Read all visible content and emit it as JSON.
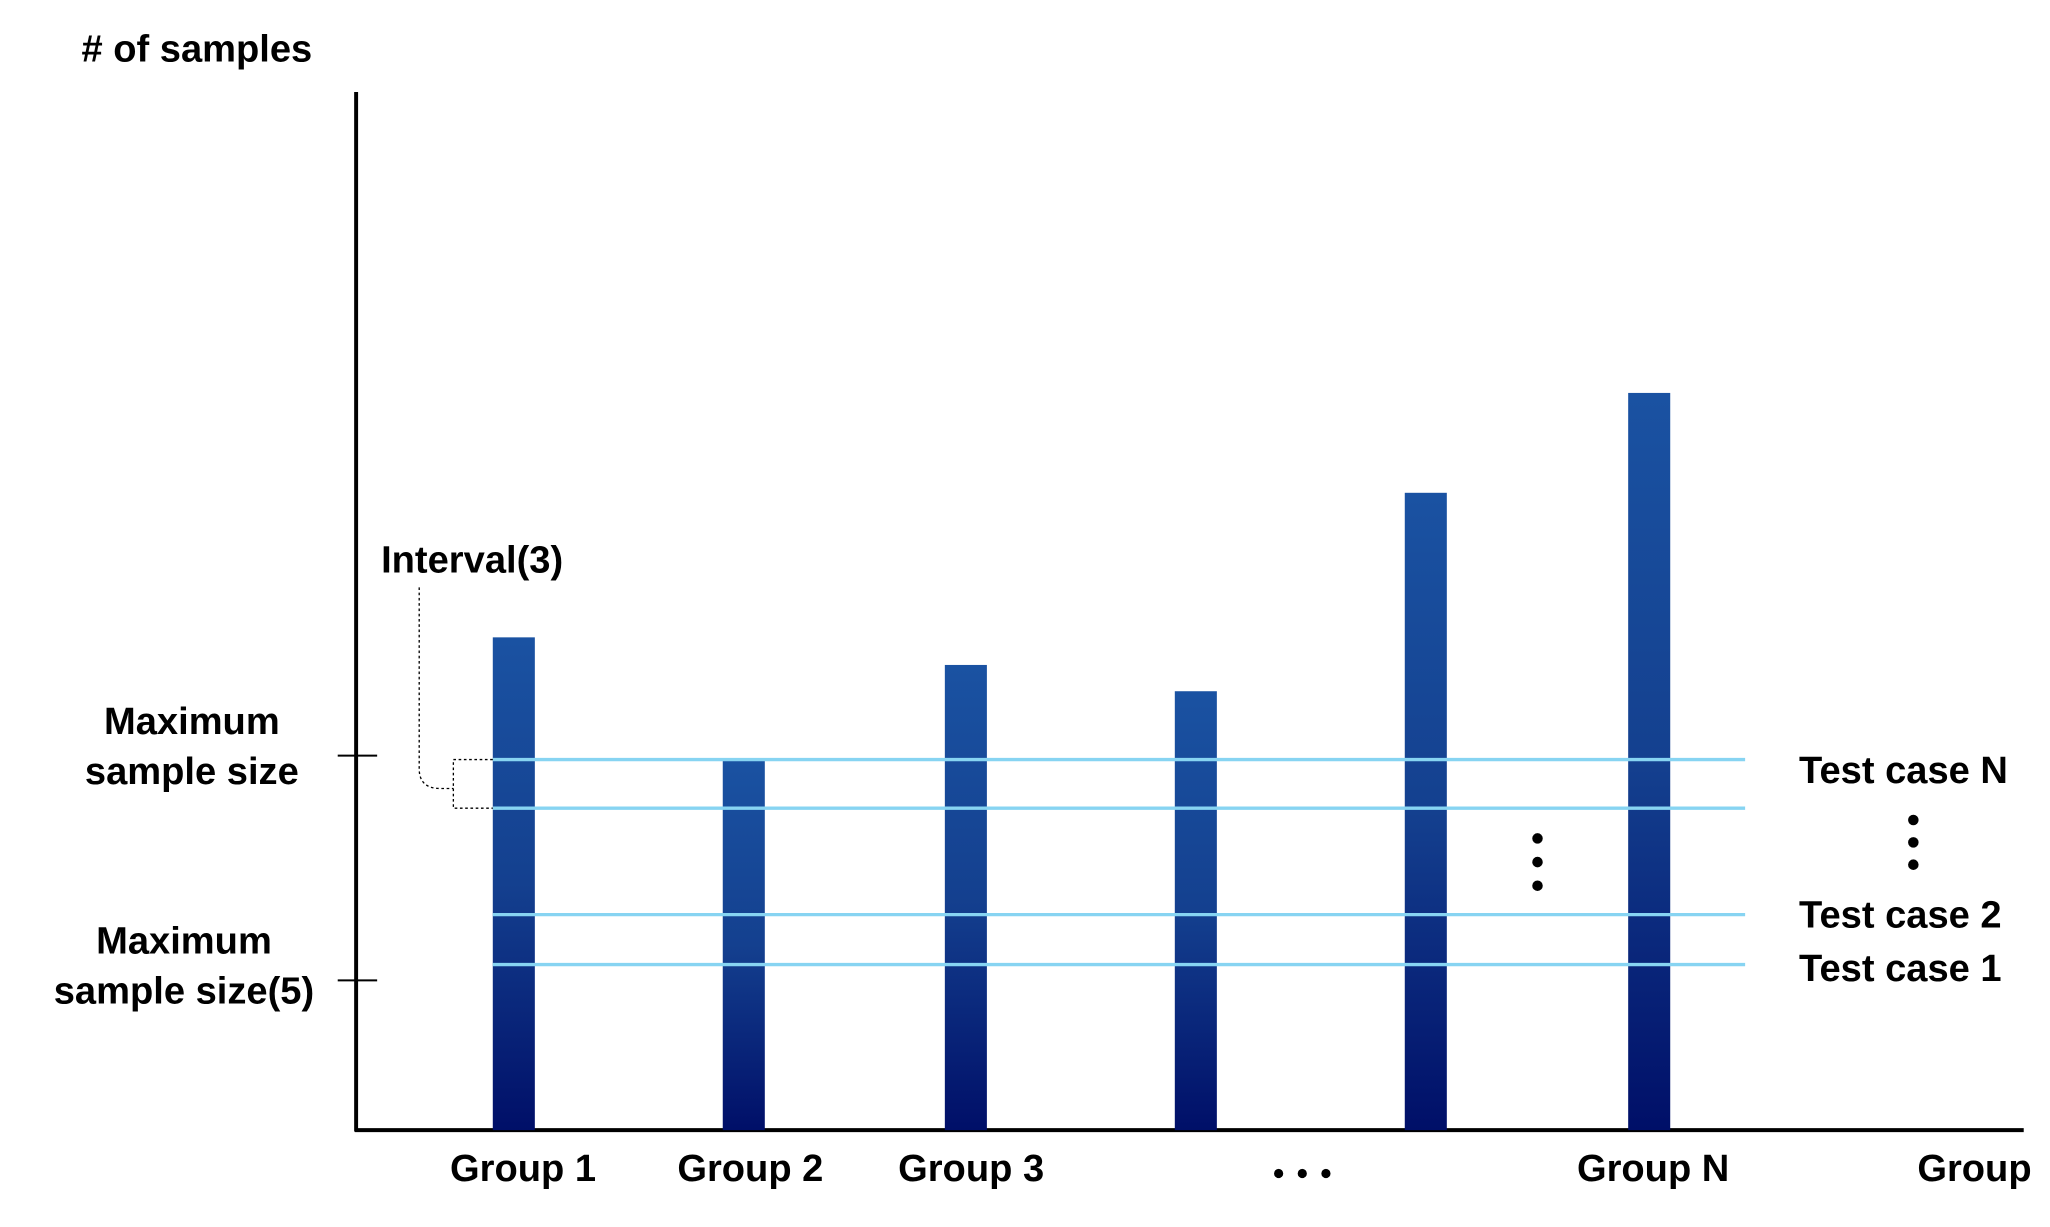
{
  "y_axis_label": "# of samples",
  "x_axis_label": "Group",
  "annotation": "Interval(3)",
  "y_labels": [
    [
      "Maximum",
      "sample size"
    ],
    [
      "Maximum",
      "sample size(5)"
    ]
  ],
  "groups": [
    "Group 1",
    "Group 2",
    "Group 3",
    "Group N"
  ],
  "test_cases": [
    "Test case N",
    "Test case 2",
    "Test case 1"
  ]
}
